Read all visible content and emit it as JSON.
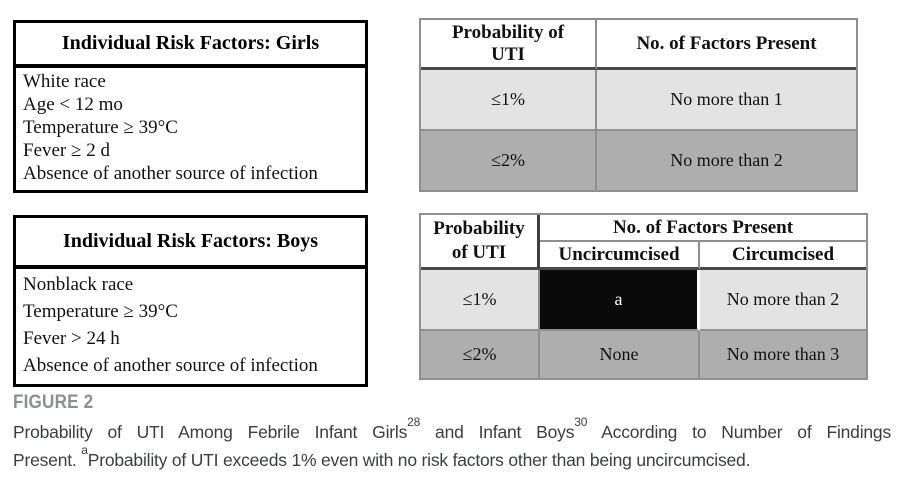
{
  "girls_risk": {
    "title": "Individual Risk Factors: Girls",
    "factors": [
      "White race",
      "Age < 12 mo",
      "Temperature ≥ 39°C",
      "Fever ≥ 2 d",
      "Absence of another source of infection"
    ]
  },
  "boys_risk": {
    "title": "Individual Risk Factors: Boys",
    "factors": [
      "Nonblack race",
      "Temperature ≥ 39°C",
      "Fever > 24 h",
      "Absence of another source of infection"
    ]
  },
  "prob_girls": {
    "header_prob_line1": "Probability of",
    "header_prob_line2": "UTI",
    "header_factors": "No. of Factors Present",
    "rows": [
      {
        "prob": "≤1%",
        "factors": "No more than 1"
      },
      {
        "prob": "≤2%",
        "factors": "No more than 2"
      }
    ]
  },
  "prob_boys": {
    "header_prob_line1": "Probability",
    "header_prob_line2": "of UTI",
    "header_group": "No. of Factors Present",
    "header_sub": [
      "Uncircumcised",
      "Circumcised"
    ],
    "rows": [
      {
        "prob": "≤1%",
        "uncircumcised": "a",
        "circumcised": "No more than 2"
      },
      {
        "prob": "≤2%",
        "uncircumcised": "None",
        "circumcised": "No more than 3"
      }
    ]
  },
  "caption": {
    "label": "FIGURE 2",
    "line1": {
      "seg1": "Probability of UTI Among Febrile Infant Girls",
      "sup1": "28",
      "seg2": " and Infant Boys",
      "sup2": "30",
      "seg3": " According to Number of Findings"
    },
    "line2": {
      "seg1": "Present. ",
      "sup1": "a",
      "seg2": "Probability of UTI exceeds 1% even with no risk factors other than being uncircumcised."
    }
  },
  "colors": {
    "row_light": "#e3e3e3",
    "row_dark": "#aeaeae",
    "table_border_gray": "#8f8f8f",
    "header_rule_dark": "#4a4a4a",
    "black_cell": "#0a0a0a",
    "risk_box_border": "#000000",
    "figure_label_gray": "#8d8f8f",
    "caption_text": "#3c3e3e"
  }
}
